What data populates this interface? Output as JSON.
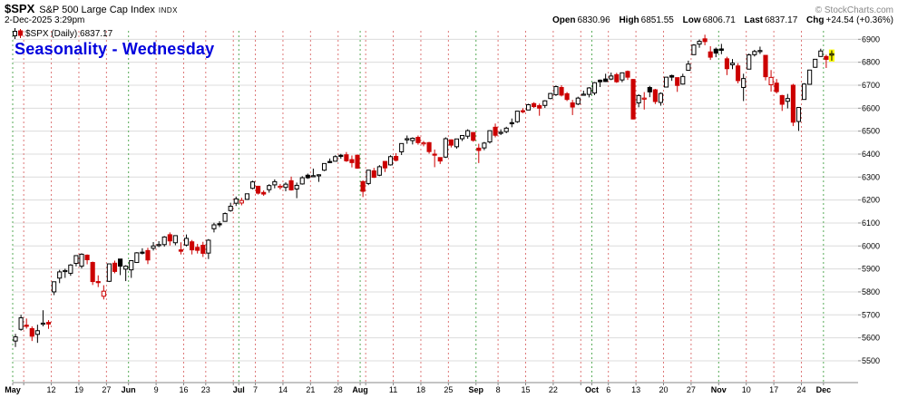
{
  "header": {
    "symbol": "$SPX",
    "name": "S&P 500 Large Cap Index",
    "exchange": "INDX",
    "datetime": "2-Dec-2025 3:29pm",
    "copyright": "© StockCharts.com",
    "quote": {
      "open_label": "Open",
      "open_value": "6830.96",
      "high_label": "High",
      "high_value": "6851.55",
      "low_label": "Low",
      "low_value": "6806.71",
      "last_label": "Last",
      "last_value": "6837.17",
      "chg_label": "Chg",
      "chg_value": "+24.54 (+0.36%)"
    }
  },
  "legend": {
    "series_label": "$SPX (Daily) 6837.17"
  },
  "annotation": {
    "text": "Seasonality - Wednesday",
    "color": "#0000DD"
  },
  "colors": {
    "candle_up": "#000000",
    "candle_down": "#CC0000",
    "candle_last": "#FFFF00",
    "grid_h": "#DCDCDC",
    "grid_week": "#DD7777",
    "grid_month": "#55AA55",
    "axis_line": "#888888",
    "axis_text": "#000000"
  },
  "chart_data": {
    "type": "candlestick",
    "title": "$SPX S&P 500 Large Cap Index (Daily)",
    "xlabel": "",
    "ylabel": "",
    "ylim": [
      5405,
      6925
    ],
    "y_ticks": [
      5500,
      5600,
      5700,
      5800,
      5900,
      6000,
      6100,
      6200,
      6300,
      6400,
      6500,
      6600,
      6700,
      6800,
      6900
    ],
    "x_ticks": [
      {
        "i": 0,
        "label": "May",
        "m": true
      },
      {
        "i": 2,
        "label": "",
        "m": false
      },
      {
        "i": 7,
        "label": "12",
        "m": false
      },
      {
        "i": 12,
        "label": "19",
        "m": false
      },
      {
        "i": 17,
        "label": "27",
        "m": false
      },
      {
        "i": 21,
        "label": "Jun",
        "m": true
      },
      {
        "i": 26,
        "label": "9",
        "m": false
      },
      {
        "i": 31,
        "label": "16",
        "m": false
      },
      {
        "i": 35,
        "label": "23",
        "m": false
      },
      {
        "i": 40,
        "label": "",
        "m": false
      },
      {
        "i": 41,
        "label": "Jul",
        "m": true
      },
      {
        "i": 44,
        "label": "7",
        "m": false
      },
      {
        "i": 49,
        "label": "14",
        "m": false
      },
      {
        "i": 54,
        "label": "21",
        "m": false
      },
      {
        "i": 59,
        "label": "28",
        "m": false
      },
      {
        "i": 63,
        "label": "Aug",
        "m": true
      },
      {
        "i": 64,
        "label": "",
        "m": false
      },
      {
        "i": 69,
        "label": "11",
        "m": false
      },
      {
        "i": 74,
        "label": "18",
        "m": false
      },
      {
        "i": 79,
        "label": "25",
        "m": false
      },
      {
        "i": 84,
        "label": "Sep",
        "m": true
      },
      {
        "i": 88,
        "label": "8",
        "m": false
      },
      {
        "i": 93,
        "label": "15",
        "m": false
      },
      {
        "i": 98,
        "label": "22",
        "m": false
      },
      {
        "i": 103,
        "label": "",
        "m": false
      },
      {
        "i": 105,
        "label": "Oct",
        "m": true
      },
      {
        "i": 108,
        "label": "6",
        "m": false
      },
      {
        "i": 113,
        "label": "13",
        "m": false
      },
      {
        "i": 118,
        "label": "20",
        "m": false
      },
      {
        "i": 123,
        "label": "27",
        "m": false
      },
      {
        "i": 128,
        "label": "Nov",
        "m": true
      },
      {
        "i": 133,
        "label": "10",
        "m": false
      },
      {
        "i": 138,
        "label": "17",
        "m": false
      },
      {
        "i": 143,
        "label": "24",
        "m": false
      },
      {
        "i": 147,
        "label": "Dec",
        "m": true
      }
    ],
    "candles": [
      [
        "1-May",
        5586,
        5617,
        5560,
        5604
      ],
      [
        "2-May",
        5637,
        5700,
        5631,
        5687
      ],
      [
        "5-May",
        5655,
        5684,
        5640,
        5650
      ],
      [
        "6-May",
        5640,
        5650,
        5586,
        5607
      ],
      [
        "7-May",
        5615,
        5657,
        5578,
        5631
      ],
      [
        "8-May",
        5660,
        5720,
        5650,
        5664
      ],
      [
        "9-May",
        5667,
        5677,
        5639,
        5660
      ],
      [
        "12-May",
        5800,
        5845,
        5786,
        5844
      ],
      [
        "13-May",
        5860,
        5896,
        5838,
        5887
      ],
      [
        "14-May",
        5890,
        5901,
        5861,
        5893
      ],
      [
        "15-May",
        5881,
        5921,
        5870,
        5917
      ],
      [
        "16-May",
        5924,
        5958,
        5911,
        5958
      ],
      [
        "19-May",
        5912,
        5968,
        5902,
        5964
      ],
      [
        "20-May",
        5960,
        5963,
        5920,
        5940
      ],
      [
        "21-May",
        5928,
        5932,
        5830,
        5845
      ],
      [
        "22-May",
        5845,
        5872,
        5821,
        5842
      ],
      [
        "23-May",
        5781,
        5829,
        5767,
        5803
      ],
      [
        "27-May",
        5846,
        5922,
        5843,
        5922
      ],
      [
        "28-May",
        5925,
        5936,
        5881,
        5889
      ],
      [
        "29-May",
        5943,
        5943,
        5873,
        5912
      ],
      [
        "30-May",
        5899,
        5916,
        5847,
        5912
      ],
      [
        "2-Jun",
        5896,
        5937,
        5861,
        5936
      ],
      [
        "3-Jun",
        5928,
        5973,
        5926,
        5970
      ],
      [
        "4-Jun",
        5973,
        5990,
        5963,
        5971
      ],
      [
        "5-Jun",
        5980,
        5992,
        5921,
        5939
      ],
      [
        "6-Jun",
        5990,
        6017,
        5980,
        6000
      ],
      [
        "9-Jun",
        6004,
        6021,
        5995,
        6006
      ],
      [
        "10-Jun",
        6006,
        6043,
        5997,
        6039
      ],
      [
        "11-Jun",
        6049,
        6059,
        6002,
        6022
      ],
      [
        "12-Jun",
        6014,
        6045,
        6003,
        6045
      ],
      [
        "13-Jun",
        5983,
        6016,
        5963,
        5977
      ],
      [
        "16-Jun",
        6004,
        6050,
        5998,
        6033
      ],
      [
        "17-Jun",
        6018,
        6026,
        5963,
        5983
      ],
      [
        "18-Jun",
        5994,
        6009,
        5967,
        5981
      ],
      [
        "20-Jun",
        6003,
        6018,
        5952,
        5968
      ],
      [
        "23-Jun",
        5969,
        6030,
        5943,
        6025
      ],
      [
        "24-Jun",
        6075,
        6101,
        6059,
        6092
      ],
      [
        "25-Jun",
        6097,
        6108,
        6082,
        6092
      ],
      [
        "26-Jun",
        6107,
        6146,
        6107,
        6141
      ],
      [
        "27-Jun",
        6154,
        6188,
        6149,
        6173
      ],
      [
        "30-Jun",
        6186,
        6215,
        6174,
        6205
      ],
      [
        "1-Jul",
        6187,
        6210,
        6177,
        6198
      ],
      [
        "2-Jul",
        6203,
        6228,
        6201,
        6227
      ],
      [
        "3-Jul",
        6251,
        6284,
        6247,
        6279
      ],
      [
        "7-Jul",
        6260,
        6262,
        6224,
        6230
      ],
      [
        "8-Jul",
        6233,
        6242,
        6218,
        6226
      ],
      [
        "9-Jul",
        6245,
        6269,
        6232,
        6263
      ],
      [
        "10-Jul",
        6266,
        6290,
        6251,
        6280
      ],
      [
        "11-Jul",
        6255,
        6270,
        6246,
        6260
      ],
      [
        "14-Jul",
        6255,
        6277,
        6238,
        6269
      ],
      [
        "15-Jul",
        6284,
        6302,
        6241,
        6244
      ],
      [
        "16-Jul",
        6248,
        6276,
        6208,
        6264
      ],
      [
        "17-Jul",
        6270,
        6304,
        6267,
        6297
      ],
      [
        "18-Jul",
        6308,
        6315,
        6292,
        6297
      ],
      [
        "21-Jul",
        6306,
        6337,
        6300,
        6306
      ],
      [
        "22-Jul",
        6308,
        6312,
        6279,
        6310
      ],
      [
        "23-Jul",
        6330,
        6360,
        6326,
        6359
      ],
      [
        "24-Jul",
        6368,
        6381,
        6361,
        6363
      ],
      [
        "25-Jul",
        6369,
        6395,
        6368,
        6389
      ],
      [
        "28-Jul",
        6395,
        6401,
        6380,
        6390
      ],
      [
        "29-Jul",
        6397,
        6409,
        6366,
        6371
      ],
      [
        "30-Jul",
        6376,
        6394,
        6342,
        6363
      ],
      [
        "31-Jul",
        6395,
        6398,
        6336,
        6339
      ],
      [
        "1-Aug",
        6280,
        6286,
        6213,
        6238
      ],
      [
        "4-Aug",
        6272,
        6331,
        6265,
        6330
      ],
      [
        "5-Aug",
        6327,
        6340,
        6296,
        6299
      ],
      [
        "6-Aug",
        6308,
        6352,
        6304,
        6345
      ],
      [
        "7-Aug",
        6368,
        6370,
        6322,
        6340
      ],
      [
        "8-Aug",
        6353,
        6395,
        6350,
        6389
      ],
      [
        "11-Aug",
        6390,
        6404,
        6368,
        6373
      ],
      [
        "12-Aug",
        6410,
        6446,
        6396,
        6446
      ],
      [
        "13-Aug",
        6462,
        6481,
        6445,
        6467
      ],
      [
        "14-Aug",
        6459,
        6473,
        6442,
        6469
      ],
      [
        "15-Aug",
        6473,
        6481,
        6441,
        6450
      ],
      [
        "18-Aug",
        6448,
        6457,
        6434,
        6449
      ],
      [
        "19-Aug",
        6450,
        6453,
        6402,
        6411
      ],
      [
        "20-Aug",
        6400,
        6420,
        6343,
        6396
      ],
      [
        "21-Aug",
        6385,
        6386,
        6357,
        6370
      ],
      [
        "22-Aug",
        6387,
        6473,
        6383,
        6467
      ],
      [
        "25-Aug",
        6462,
        6464,
        6429,
        6439
      ],
      [
        "26-Aug",
        6432,
        6466,
        6424,
        6466
      ],
      [
        "27-Aug",
        6467,
        6482,
        6457,
        6481
      ],
      [
        "28-Aug",
        6478,
        6508,
        6467,
        6502
      ],
      [
        "29-Aug",
        6494,
        6495,
        6454,
        6460
      ],
      [
        "2-Sep",
        6426,
        6445,
        6361,
        6416
      ],
      [
        "3-Sep",
        6427,
        6453,
        6417,
        6448
      ],
      [
        "4-Sep",
        6453,
        6503,
        6446,
        6502
      ],
      [
        "5-Sep",
        6517,
        6533,
        6473,
        6482
      ],
      [
        "8-Sep",
        6491,
        6508,
        6483,
        6495
      ],
      [
        "9-Sep",
        6498,
        6519,
        6491,
        6513
      ],
      [
        "10-Sep",
        6537,
        6555,
        6517,
        6532
      ],
      [
        "11-Sep",
        6541,
        6588,
        6536,
        6587
      ],
      [
        "12-Sep",
        6589,
        6600,
        6578,
        6584
      ],
      [
        "15-Sep",
        6592,
        6619,
        6592,
        6615
      ],
      [
        "16-Sep",
        6620,
        6626,
        6601,
        6607
      ],
      [
        "17-Sep",
        6611,
        6620,
        6567,
        6600
      ],
      [
        "18-Sep",
        6612,
        6635,
        6601,
        6632
      ],
      [
        "19-Sep",
        6642,
        6666,
        6639,
        6664
      ],
      [
        "22-Sep",
        6659,
        6699,
        6653,
        6694
      ],
      [
        "23-Sep",
        6690,
        6700,
        6651,
        6657
      ],
      [
        "24-Sep",
        6663,
        6670,
        6631,
        6638
      ],
      [
        "25-Sep",
        6623,
        6636,
        6570,
        6605
      ],
      [
        "26-Sep",
        6618,
        6650,
        6613,
        6644
      ],
      [
        "29-Sep",
        6659,
        6676,
        6655,
        6661
      ],
      [
        "30-Sep",
        6660,
        6692,
        6647,
        6688
      ],
      [
        "1-Oct",
        6666,
        6714,
        6657,
        6711
      ],
      [
        "2-Oct",
        6722,
        6725,
        6692,
        6715
      ],
      [
        "3-Oct",
        6727,
        6750,
        6714,
        6716
      ],
      [
        "6-Oct",
        6727,
        6755,
        6722,
        6740
      ],
      [
        "7-Oct",
        6746,
        6754,
        6710,
        6715
      ],
      [
        "8-Oct",
        6723,
        6755,
        6713,
        6754
      ],
      [
        "9-Oct",
        6760,
        6764,
        6723,
        6735
      ],
      [
        "10-Oct",
        6725,
        6727,
        6551,
        6553
      ],
      [
        "13-Oct",
        6623,
        6661,
        6604,
        6655
      ],
      [
        "14-Oct",
        6644,
        6670,
        6594,
        6644
      ],
      [
        "15-Oct",
        6690,
        6697,
        6648,
        6671
      ],
      [
        "16-Oct",
        6680,
        6684,
        6618,
        6629
      ],
      [
        "17-Oct",
        6625,
        6669,
        6611,
        6664
      ],
      [
        "20-Oct",
        6692,
        6736,
        6691,
        6735
      ],
      [
        "21-Oct",
        6742,
        6746,
        6719,
        6735
      ],
      [
        "22-Oct",
        6733,
        6733,
        6671,
        6699
      ],
      [
        "23-Oct",
        6705,
        6750,
        6703,
        6738
      ],
      [
        "24-Oct",
        6765,
        6807,
        6763,
        6792
      ],
      [
        "27-Oct",
        6833,
        6879,
        6832,
        6875
      ],
      [
        "28-Oct",
        6879,
        6899,
        6863,
        6891
      ],
      [
        "29-Oct",
        6902,
        6920,
        6874,
        6890
      ],
      [
        "30-Oct",
        6845,
        6870,
        6810,
        6822
      ],
      [
        "31-Oct",
        6857,
        6864,
        6822,
        6840
      ],
      [
        "3-Nov",
        6858,
        6880,
        6835,
        6852
      ],
      [
        "4-Nov",
        6815,
        6824,
        6744,
        6772
      ],
      [
        "5-Nov",
        6789,
        6814,
        6770,
        6796
      ],
      [
        "6-Nov",
        6784,
        6796,
        6708,
        6720
      ],
      [
        "7-Nov",
        6690,
        6750,
        6631,
        6729
      ],
      [
        "10-Nov",
        6770,
        6838,
        6769,
        6832
      ],
      [
        "11-Nov",
        6833,
        6854,
        6825,
        6847
      ],
      [
        "12-Nov",
        6848,
        6868,
        6836,
        6851
      ],
      [
        "13-Nov",
        6830,
        6831,
        6721,
        6737
      ],
      [
        "14-Nov",
        6702,
        6766,
        6672,
        6734
      ],
      [
        "17-Nov",
        6709,
        6727,
        6664,
        6672
      ],
      [
        "18-Nov",
        6655,
        6658,
        6588,
        6617
      ],
      [
        "19-Nov",
        6630,
        6662,
        6599,
        6642
      ],
      [
        "20-Nov",
        6700,
        6706,
        6522,
        6539
      ],
      [
        "21-Nov",
        6542,
        6604,
        6501,
        6603
      ],
      [
        "24-Nov",
        6638,
        6709,
        6637,
        6705
      ],
      [
        "25-Nov",
        6704,
        6767,
        6703,
        6766
      ],
      [
        "26-Nov",
        6778,
        6813,
        6776,
        6813
      ],
      [
        "28-Nov",
        6825,
        6859,
        6824,
        6849
      ],
      [
        "1-Dec",
        6825,
        6833,
        6775,
        6812.63
      ],
      [
        "2-Dec",
        6830.96,
        6851.55,
        6806.71,
        6837.17
      ]
    ]
  }
}
